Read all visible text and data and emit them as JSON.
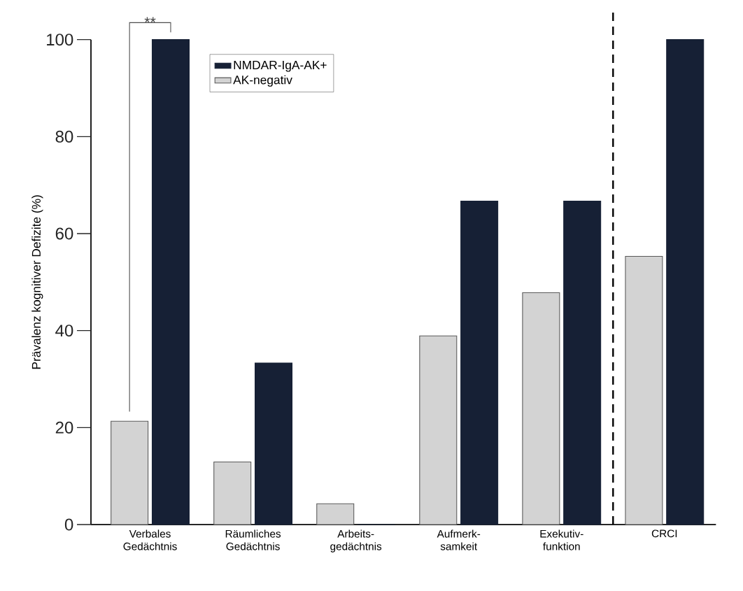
{
  "chart_data": {
    "type": "bar",
    "ylabel": "Prävalenz kognitiver Defizite (%)",
    "categories": [
      "Verbales Gedächtnis",
      "Räumliches Gedächtnis",
      "Arbeits-gedächtnis",
      "Aufmerk-samkeit",
      "Exekutiv-funktion",
      "CRCI"
    ],
    "series": [
      {
        "name": "AK-negativ",
        "color": "#d3d3d3",
        "values": [
          21.3,
          12.9,
          4.3,
          38.9,
          47.8,
          55.3
        ]
      },
      {
        "name": "NMDAR-IgA-AK+",
        "color": "#162035",
        "values": [
          100,
          33.3,
          0,
          66.7,
          66.7,
          100
        ]
      }
    ],
    "ylim": [
      0,
      100
    ],
    "yticks": [
      0,
      20,
      40,
      60,
      80,
      100
    ],
    "legend": "top left",
    "annotations": [
      "**"
    ]
  }
}
